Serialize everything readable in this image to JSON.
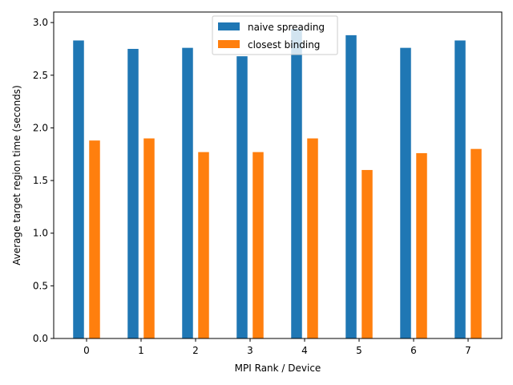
{
  "chart_data": {
    "type": "bar",
    "xlabel": "MPI Rank / Device",
    "ylabel": "Average target region time (seconds)",
    "categories": [
      "0",
      "1",
      "2",
      "3",
      "4",
      "5",
      "6",
      "7"
    ],
    "ylim": [
      0,
      3.1
    ],
    "yticks": [
      "0.0",
      "0.5",
      "1.0",
      "1.5",
      "2.0",
      "2.5",
      "3.0"
    ],
    "grid": false,
    "legend_position": "upper-center",
    "series": [
      {
        "name": "naive spreading",
        "color": "#1f77b4",
        "values": [
          2.83,
          2.75,
          2.76,
          2.68,
          2.94,
          2.88,
          2.76,
          2.83
        ]
      },
      {
        "name": "closest binding",
        "color": "#ff7f0e",
        "values": [
          1.88,
          1.9,
          1.77,
          1.77,
          1.9,
          1.6,
          1.76,
          1.8
        ]
      }
    ]
  }
}
